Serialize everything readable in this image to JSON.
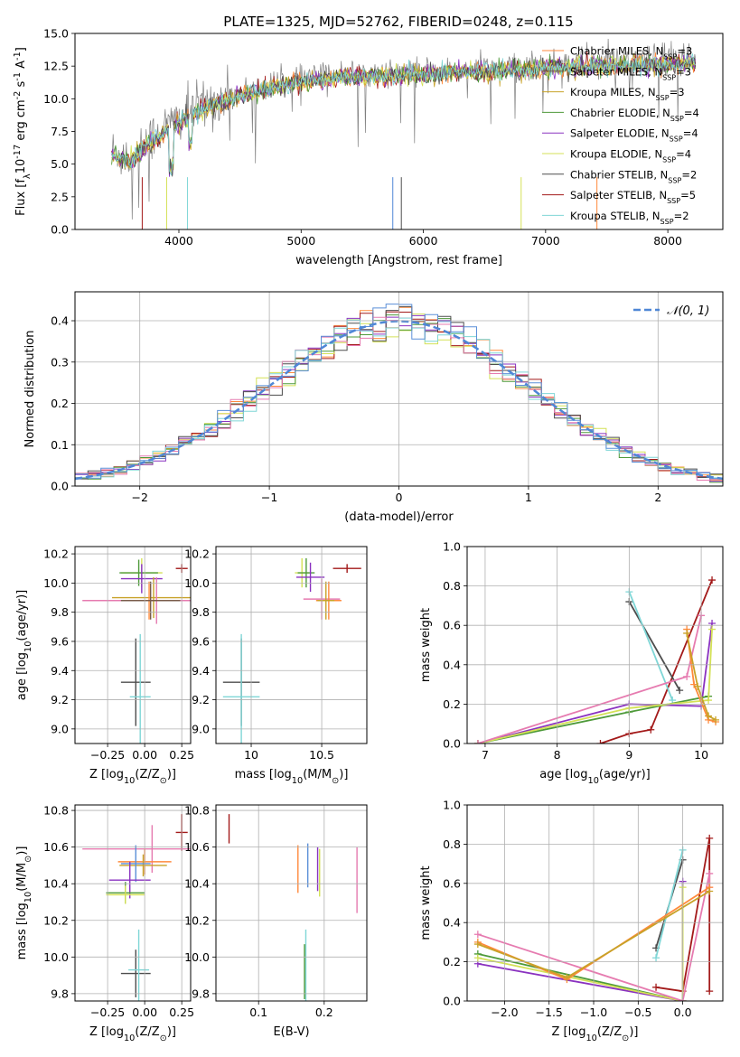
{
  "title": "PLATE=1325, MJD=52762, FIBERID=0248, z=0.115",
  "colors": {
    "chabrier_miles": "#ff8a3c",
    "salpeter_miles": "#7a5b4a",
    "kroupa_miles": "#c8a228",
    "chabrier_elodie": "#4e9a3a",
    "salpeter_elodie": "#8a32c0",
    "kroupa_elodie": "#d4e157",
    "chabrier_stelib": "#4d4d4d",
    "salpeter_stelib": "#a31a1a",
    "kroupa_stelib": "#7fd6d6",
    "gaussian": "#4f87d6",
    "pink": "#e67bb0",
    "blue": "#5b8fd8"
  },
  "chart_data": [
    {
      "type": "line",
      "id": "spectrum",
      "title": "PLATE=1325, MJD=52762, FIBERID=0248, z=0.115",
      "xlabel": "wavelength [Angstrom, rest frame]",
      "ylabel": "Flux [f$_\\lambda$10$^{-17}$ erg cm$^{-2}$ s$^{-1}$ A$^{-1}$]",
      "xlim": [
        3150,
        8450
      ],
      "ylim": [
        0,
        15
      ],
      "xticks": [
        4000,
        5000,
        6000,
        7000,
        8000
      ],
      "yticks": [
        0.0,
        2.5,
        5.0,
        7.5,
        10.0,
        12.5,
        15.0
      ],
      "legend": [
        {
          "label": "Chabrier MILES, N_SSP=3",
          "color_key": "chabrier_miles"
        },
        {
          "label": "Salpeter MILES, N_SSP=3",
          "color_key": "salpeter_miles"
        },
        {
          "label": "Kroupa MILES, N_SSP=3",
          "color_key": "kroupa_miles"
        },
        {
          "label": "Chabrier ELODIE, N_SSP=4",
          "color_key": "chabrier_elodie"
        },
        {
          "label": "Salpeter ELODIE, N_SSP=4",
          "color_key": "salpeter_elodie"
        },
        {
          "label": "Kroupa ELODIE, N_SSP=4",
          "color_key": "kroupa_elodie"
        },
        {
          "label": "Chabrier STELIB, N_SSP=2",
          "color_key": "chabrier_stelib"
        },
        {
          "label": "Salpeter STELIB, N_SSP=5",
          "color_key": "salpeter_stelib"
        },
        {
          "label": "Kroupa STELIB, N_SSP=2",
          "color_key": "kroupa_stelib"
        }
      ],
      "legend_placement": "right",
      "continuum": {
        "x": [
          3450,
          3600,
          3800,
          4000,
          4200,
          4500,
          4800,
          5000,
          5300,
          5600,
          6000,
          6300,
          6600,
          7000,
          7400,
          7800,
          8200
        ],
        "y": [
          6.0,
          5.5,
          7.2,
          8.5,
          9.5,
          10.5,
          11.2,
          11.6,
          11.9,
          12.0,
          12.1,
          12.3,
          12.4,
          12.6,
          12.8,
          12.9,
          13.0
        ]
      }
    },
    {
      "type": "histogram",
      "id": "residuals",
      "xlabel": "(data-model)/error",
      "ylabel": "Normed distribution",
      "xlim": [
        -2.5,
        2.5
      ],
      "ylim": [
        0,
        0.47
      ],
      "xticks": [
        -2,
        -1,
        0,
        1,
        2
      ],
      "yticks": [
        0.0,
        0.1,
        0.2,
        0.3,
        0.4
      ],
      "grid": true,
      "bin_edges_start": -2.5,
      "bin_width": 0.1,
      "bins": 50,
      "legend": [
        {
          "label": "𝒩(0, 1)",
          "color_key": "gaussian",
          "style": "dashed"
        }
      ],
      "legend_placement": "top-right",
      "gaussian": {
        "mean": 0,
        "sigma": 1
      }
    },
    {
      "type": "errorbar",
      "id": "age_vs_Z",
      "xlabel": "Z [log$_{10}$(Z/Z$_\\odot$)]",
      "ylabel": "age  [log$_{10}$(age/yr)]",
      "xlim": [
        -0.47,
        0.31
      ],
      "ylim": [
        8.9,
        10.25
      ],
      "xticks": [
        -0.25,
        0.0,
        0.25
      ],
      "xticklabels": [
        "−0.25",
        "0.00",
        "0.25"
      ],
      "yticks": [
        9.0,
        9.2,
        9.4,
        9.6,
        9.8,
        10.0,
        10.2
      ],
      "grid": true,
      "points": [
        {
          "x": 0.25,
          "y": 10.1,
          "xerr": 0.04,
          "yerr": 0.03,
          "color_key": "salpeter_stelib"
        },
        {
          "x": -0.02,
          "y": 10.07,
          "xerr": 0.14,
          "yerr": 0.1,
          "color_key": "kroupa_elodie"
        },
        {
          "x": -0.04,
          "y": 10.07,
          "xerr": 0.13,
          "yerr": 0.09,
          "color_key": "chabrier_elodie"
        },
        {
          "x": -0.02,
          "y": 10.03,
          "xerr": 0.14,
          "yerr": 0.1,
          "color_key": "salpeter_elodie"
        },
        {
          "x": 0.06,
          "y": 9.9,
          "xerr": 0.28,
          "yerr": 0.14,
          "color_key": "kroupa_miles"
        },
        {
          "x": 0.08,
          "y": 9.88,
          "xerr": 0.5,
          "yerr": 0.16,
          "color_key": "pink"
        },
        {
          "x": 0.03,
          "y": 9.88,
          "xerr": 0.18,
          "yerr": 0.13,
          "color_key": "chabrier_miles"
        },
        {
          "x": 0.04,
          "y": 9.88,
          "xerr": 0.2,
          "yerr": 0.13,
          "color_key": "salpeter_miles"
        },
        {
          "x": -0.06,
          "y": 9.32,
          "xerr": 0.1,
          "yerr": 0.3,
          "color_key": "chabrier_stelib"
        },
        {
          "x": -0.03,
          "y": 9.22,
          "xerr": 0.07,
          "yerr": 0.43,
          "color_key": "kroupa_stelib"
        }
      ]
    },
    {
      "type": "errorbar",
      "id": "age_vs_mass",
      "xlabel": "mass [log$_{10}$(M/M$_\\odot$)]",
      "ylabel": "",
      "xlim": [
        9.75,
        10.82
      ],
      "ylim": [
        8.9,
        10.25
      ],
      "xticks": [
        10.0,
        10.5
      ],
      "yticks": [
        9.0,
        9.2,
        9.4,
        9.6,
        9.8,
        10.0,
        10.2
      ],
      "grid": true,
      "points": [
        {
          "x": 10.68,
          "y": 10.1,
          "xerr": 0.1,
          "yerr": 0.03,
          "color_key": "salpeter_stelib"
        },
        {
          "x": 10.36,
          "y": 10.07,
          "xerr": 0.05,
          "yerr": 0.1,
          "color_key": "kroupa_elodie"
        },
        {
          "x": 10.39,
          "y": 10.07,
          "xerr": 0.06,
          "yerr": 0.1,
          "color_key": "chabrier_elodie"
        },
        {
          "x": 10.42,
          "y": 10.04,
          "xerr": 0.1,
          "yerr": 0.1,
          "color_key": "salpeter_elodie"
        },
        {
          "x": 10.5,
          "y": 9.89,
          "xerr": 0.13,
          "yerr": 0.14,
          "color_key": "pink"
        },
        {
          "x": 10.55,
          "y": 9.88,
          "xerr": 0.09,
          "yerr": 0.13,
          "color_key": "chabrier_miles"
        },
        {
          "x": 10.53,
          "y": 9.88,
          "xerr": 0.06,
          "yerr": 0.13,
          "color_key": "kroupa_miles"
        },
        {
          "x": 9.93,
          "y": 9.32,
          "xerr": 0.13,
          "yerr": 0.3,
          "color_key": "chabrier_stelib"
        },
        {
          "x": 9.93,
          "y": 9.22,
          "xerr": 0.13,
          "yerr": 0.43,
          "color_key": "kroupa_stelib"
        }
      ]
    },
    {
      "type": "line",
      "id": "weight_vs_age",
      "xlabel": "age  [log$_{10}$(age/yr)]",
      "ylabel": "mass weight",
      "xlim": [
        6.75,
        10.3
      ],
      "ylim": [
        0,
        1
      ],
      "xticks": [
        7,
        8,
        9,
        10
      ],
      "yticks": [
        0.0,
        0.2,
        0.4,
        0.6,
        0.8,
        1.0
      ],
      "grid": true,
      "series": [
        {
          "color_key": "salpeter_stelib",
          "x": [
            8.6,
            9.0,
            9.3,
            10.15
          ],
          "y": [
            0.0,
            0.05,
            0.07,
            0.83
          ]
        },
        {
          "color_key": "chabrier_stelib",
          "x": [
            9.0,
            9.7
          ],
          "y": [
            0.72,
            0.27
          ]
        },
        {
          "color_key": "kroupa_stelib",
          "x": [
            9.0,
            9.6
          ],
          "y": [
            0.77,
            0.22
          ]
        },
        {
          "color_key": "salpeter_elodie",
          "x": [
            6.9,
            9.0,
            10.0,
            10.15
          ],
          "y": [
            0.0,
            0.2,
            0.19,
            0.61
          ]
        },
        {
          "color_key": "chabrier_elodie",
          "x": [
            6.9,
            9.0,
            10.1
          ],
          "y": [
            0.0,
            0.16,
            0.24
          ]
        },
        {
          "color_key": "kroupa_elodie",
          "x": [
            6.9,
            9.0,
            10.1,
            10.15
          ],
          "y": [
            0.0,
            0.18,
            0.22,
            0.58
          ]
        },
        {
          "color_key": "pink",
          "x": [
            6.9,
            9.8,
            10.0
          ],
          "y": [
            0.0,
            0.34,
            0.65
          ]
        },
        {
          "color_key": "chabrier_miles",
          "x": [
            9.8,
            9.9,
            10.1,
            10.2
          ],
          "y": [
            0.58,
            0.3,
            0.12,
            0.11
          ]
        },
        {
          "color_key": "kroupa_miles",
          "x": [
            9.8,
            9.95,
            10.1,
            10.2
          ],
          "y": [
            0.56,
            0.29,
            0.14,
            0.12
          ]
        }
      ]
    },
    {
      "type": "errorbar",
      "id": "mass_vs_Z",
      "xlabel": "Z [log$_{10}$(Z/Z$_\\odot$)]",
      "ylabel": "mass [log$_{10}$(M/M$_\\odot$)]",
      "xlim": [
        -0.47,
        0.31
      ],
      "ylim": [
        9.76,
        10.83
      ],
      "xticks": [
        -0.25,
        0.0,
        0.25
      ],
      "xticklabels": [
        "−0.25",
        "0.00",
        "0.25"
      ],
      "yticks": [
        9.8,
        10.0,
        10.2,
        10.4,
        10.6,
        10.8
      ],
      "grid": true,
      "points": [
        {
          "x": 0.25,
          "y": 10.68,
          "xerr": 0.04,
          "yerr": 0.1,
          "color_key": "salpeter_stelib"
        },
        {
          "x": 0.05,
          "y": 10.59,
          "xerr": 0.47,
          "yerr": 0.13,
          "color_key": "pink"
        },
        {
          "x": 0.0,
          "y": 10.52,
          "xerr": 0.18,
          "yerr": 0.07,
          "color_key": "chabrier_miles"
        },
        {
          "x": -0.01,
          "y": 10.5,
          "xerr": 0.16,
          "yerr": 0.06,
          "color_key": "kroupa_miles"
        },
        {
          "x": -0.06,
          "y": 10.51,
          "xerr": 0.1,
          "yerr": 0.1,
          "color_key": "blue"
        },
        {
          "x": -0.1,
          "y": 10.42,
          "xerr": 0.14,
          "yerr": 0.1,
          "color_key": "salpeter_elodie"
        },
        {
          "x": -0.13,
          "y": 10.35,
          "xerr": 0.13,
          "yerr": 0.06,
          "color_key": "chabrier_elodie"
        },
        {
          "x": -0.13,
          "y": 10.34,
          "xerr": 0.13,
          "yerr": 0.05,
          "color_key": "kroupa_elodie"
        },
        {
          "x": -0.06,
          "y": 9.91,
          "xerr": 0.1,
          "yerr": 0.13,
          "color_key": "chabrier_stelib"
        },
        {
          "x": -0.04,
          "y": 9.93,
          "xerr": 0.07,
          "yerr": 0.22,
          "color_key": "kroupa_stelib"
        }
      ]
    },
    {
      "type": "errorbar",
      "id": "mass_vs_ebv",
      "xlabel": "E(B-V)",
      "ylabel": "",
      "xlim": [
        0.035,
        0.265
      ],
      "ylim": [
        9.76,
        10.83
      ],
      "xticks": [
        0.1,
        0.2
      ],
      "yticks": [
        9.8,
        10.0,
        10.2,
        10.4,
        10.6,
        10.8
      ],
      "grid": true,
      "points": [
        {
          "x": 0.055,
          "y": 10.7,
          "xerr": 0.0,
          "yerr": 0.08,
          "color_key": "salpeter_stelib"
        },
        {
          "x": 0.16,
          "y": 10.48,
          "xerr": 0.0,
          "yerr": 0.13,
          "color_key": "chabrier_miles"
        },
        {
          "x": 0.175,
          "y": 10.5,
          "xerr": 0.0,
          "yerr": 0.12,
          "color_key": "blue"
        },
        {
          "x": 0.19,
          "y": 10.48,
          "xerr": 0.0,
          "yerr": 0.12,
          "color_key": "salpeter_elodie"
        },
        {
          "x": 0.193,
          "y": 10.46,
          "xerr": 0.0,
          "yerr": 0.13,
          "color_key": "kroupa_elodie"
        },
        {
          "x": 0.25,
          "y": 10.42,
          "xerr": 0.0,
          "yerr": 0.18,
          "color_key": "pink"
        },
        {
          "x": 0.172,
          "y": 9.93,
          "xerr": 0.0,
          "yerr": 0.22,
          "color_key": "kroupa_stelib"
        },
        {
          "x": 0.17,
          "y": 9.92,
          "xerr": 0.0,
          "yerr": 0.15,
          "color_key": "chabrier_elodie"
        }
      ]
    },
    {
      "type": "line",
      "id": "weight_vs_Z",
      "xlabel": "Z [log$_{10}$(Z/Z$_\\odot$)]",
      "ylabel": "mass weight",
      "xlim": [
        -2.42,
        0.45
      ],
      "ylim": [
        0,
        1
      ],
      "xticks": [
        -2.0,
        -1.5,
        -1.0,
        -0.5,
        0.0
      ],
      "xticklabels": [
        "−2.0",
        "−1.5",
        "−1.0",
        "−0.5",
        "0.0"
      ],
      "yticks": [
        0.0,
        0.2,
        0.4,
        0.6,
        0.8,
        1.0
      ],
      "grid": true,
      "series": [
        {
          "color_key": "salpeter_stelib",
          "x": [
            -0.3,
            0.0,
            0.3,
            0.3
          ],
          "y": [
            0.07,
            0.05,
            0.83,
            0.05
          ]
        },
        {
          "color_key": "chabrier_stelib",
          "x": [
            -0.3,
            0.0
          ],
          "y": [
            0.27,
            0.72
          ]
        },
        {
          "color_key": "kroupa_stelib",
          "x": [
            -0.3,
            0.0
          ],
          "y": [
            0.22,
            0.77
          ]
        },
        {
          "color_key": "salpeter_elodie",
          "x": [
            -2.3,
            0.0,
            0.0
          ],
          "y": [
            0.19,
            0.0,
            0.61
          ]
        },
        {
          "color_key": "chabrier_elodie",
          "x": [
            -2.3,
            0.0
          ],
          "y": [
            0.24,
            0.0
          ]
        },
        {
          "color_key": "kroupa_elodie",
          "x": [
            -2.3,
            0.0,
            0.0
          ],
          "y": [
            0.22,
            0.0,
            0.58
          ]
        },
        {
          "color_key": "pink",
          "x": [
            -2.3,
            0.0,
            0.3,
            0.3
          ],
          "y": [
            0.34,
            0.0,
            0.65,
            0.58
          ]
        },
        {
          "color_key": "chabrier_miles",
          "x": [
            -2.3,
            -1.3,
            0.3
          ],
          "y": [
            0.3,
            0.11,
            0.58
          ]
        },
        {
          "color_key": "kroupa_miles",
          "x": [
            -2.3,
            -1.3,
            0.3
          ],
          "y": [
            0.29,
            0.12,
            0.56
          ]
        }
      ]
    }
  ]
}
